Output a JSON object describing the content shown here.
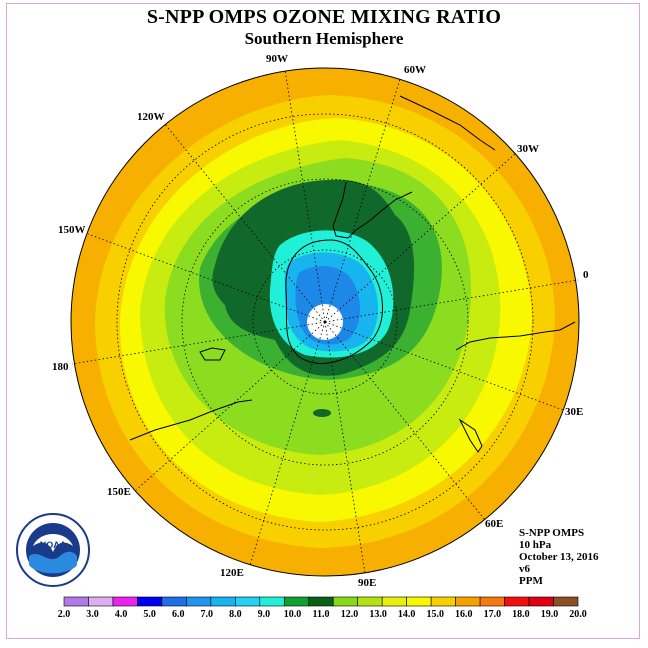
{
  "header": {
    "title": "S-NPP OMPS OZONE MIXING RATIO",
    "subtitle": "Southern Hemisphere"
  },
  "longitude_labels": [
    {
      "text": "90W"
    },
    {
      "text": "60W"
    },
    {
      "text": "30W"
    },
    {
      "text": "0"
    },
    {
      "text": "30E"
    },
    {
      "text": "60E"
    },
    {
      "text": "90E"
    },
    {
      "text": "120E"
    },
    {
      "text": "150E"
    },
    {
      "text": "180"
    },
    {
      "text": "150W"
    },
    {
      "text": "120W"
    }
  ],
  "info_box": {
    "line1": "S-NPP OMPS",
    "line2": "10 hPa",
    "line3": "October 13, 2016",
    "line4": "v6",
    "line5": "PPM"
  },
  "logo": {
    "text": "NOAA",
    "ring_text": "NATIONAL OCEANIC AND ATMOSPHERIC ADMINISTRATION · U.S. DEPARTMENT OF COMMERCE"
  },
  "colorbar": {
    "labels": [
      "2.0",
      "3.0",
      "4.0",
      "5.0",
      "6.0",
      "7.0",
      "8.0",
      "9.0",
      "10.0",
      "11.0",
      "12.0",
      "13.0",
      "14.0",
      "15.0",
      "16.0",
      "17.0",
      "18.0",
      "19.0",
      "20.0"
    ],
    "colors": [
      "#b07ae8",
      "#dcb0f0",
      "#ee22ee",
      "#0000ee",
      "#1e6ee8",
      "#1e96f0",
      "#18b4f0",
      "#20d2f4",
      "#20f0d8",
      "#10a030",
      "#086018",
      "#88d818",
      "#b4e410",
      "#e8f010",
      "#f8f800",
      "#f8d000",
      "#f8a000",
      "#f87810",
      "#f01010",
      "#e00010",
      "#8c5028"
    ]
  },
  "map_legend_levels": {
    "outer_orange": "#f8b000",
    "yellow_orange": "#f8d000",
    "yellow": "#f8f800",
    "yellow_green": "#c8ec10",
    "light_green": "#8cdc20",
    "green": "#3cb030",
    "dark_green": "#10682a",
    "cyan": "#20f0d8",
    "light_blue": "#18b4f0",
    "blue": "#1e88e8"
  }
}
